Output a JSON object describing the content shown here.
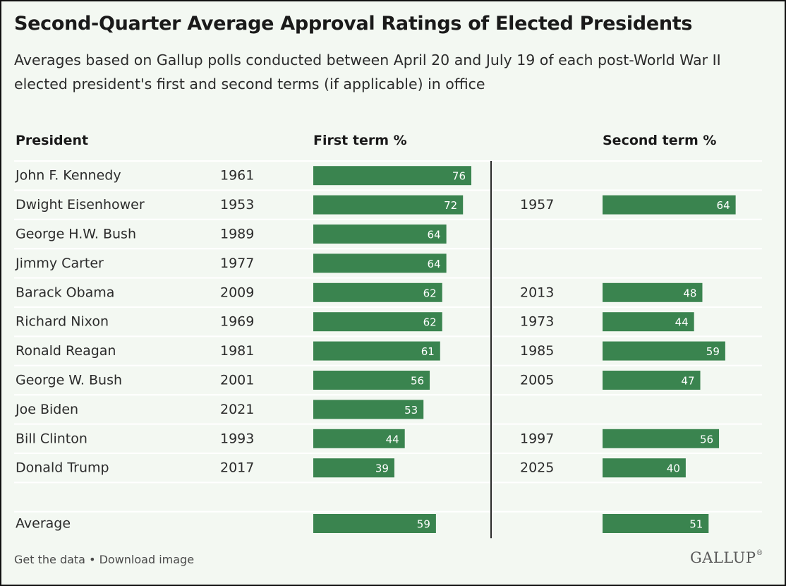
{
  "title": "Second-Quarter Average Approval Ratings of Elected Presidents",
  "subtitle": "Averages based on Gallup polls conducted between April 20 and July 19 of each post-World War II elected president's first and second terms (if applicable) in office",
  "headers": {
    "president": "President",
    "first_term": "First term %",
    "second_term": "Second term %"
  },
  "footer": {
    "get_data": "Get the data",
    "separator": " • ",
    "download": "Download image"
  },
  "logo": "GALLUP",
  "colors": {
    "bar": "#3a844f",
    "background": "#f3f8f2",
    "row_divider": "#ffffff",
    "term_divider": "#2b2b2b"
  },
  "chart_data": {
    "type": "bar",
    "columns": [
      "President",
      "First term %",
      "Second term %"
    ],
    "rows": [
      {
        "president": "John F. Kennedy",
        "first_year": "1961",
        "first": 76,
        "second_year": "",
        "second": null
      },
      {
        "president": "Dwight Eisenhower",
        "first_year": "1953",
        "first": 72,
        "second_year": "1957",
        "second": 64
      },
      {
        "president": "George H.W. Bush",
        "first_year": "1989",
        "first": 64,
        "second_year": "",
        "second": null
      },
      {
        "president": "Jimmy Carter",
        "first_year": "1977",
        "first": 64,
        "second_year": "",
        "second": null
      },
      {
        "president": "Barack Obama",
        "first_year": "2009",
        "first": 62,
        "second_year": "2013",
        "second": 48
      },
      {
        "president": "Richard Nixon",
        "first_year": "1969",
        "first": 62,
        "second_year": "1973",
        "second": 44
      },
      {
        "president": "Ronald Reagan",
        "first_year": "1981",
        "first": 61,
        "second_year": "1985",
        "second": 59
      },
      {
        "president": "George W. Bush",
        "first_year": "2001",
        "first": 56,
        "second_year": "2005",
        "second": 47
      },
      {
        "president": "Joe Biden",
        "first_year": "2021",
        "first": 53,
        "second_year": "",
        "second": null
      },
      {
        "president": "Bill Clinton",
        "first_year": "1993",
        "first": 44,
        "second_year": "1997",
        "second": 56
      },
      {
        "president": "Donald Trump",
        "first_year": "2017",
        "first": 39,
        "second_year": "2025",
        "second": 40
      }
    ],
    "average": {
      "label": "Average",
      "first": 59,
      "second": 51
    },
    "xlim": [
      0,
      100
    ]
  }
}
